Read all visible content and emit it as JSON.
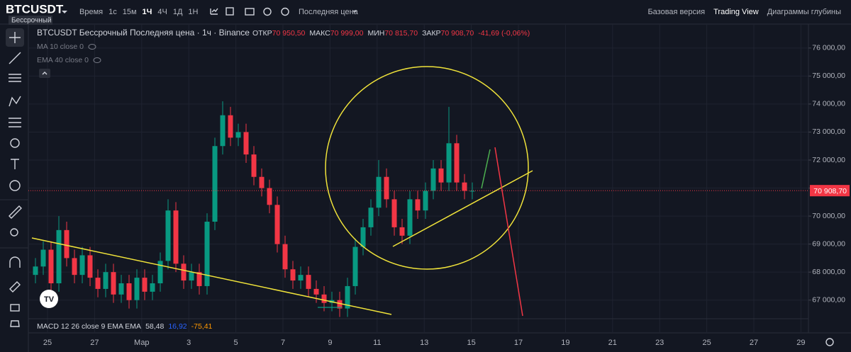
{
  "header": {
    "symbol": "BTCUSDT",
    "contract": "Бессрочный",
    "timeframes": [
      "Время",
      "1с",
      "15м",
      "1Ч",
      "4Ч",
      "1Д",
      "1Н"
    ],
    "price_type": "Последняя цена",
    "views": [
      "Базовая версия",
      "Trading View",
      "Диаграммы глубины"
    ]
  },
  "chart_data": {
    "type": "candlestick",
    "title": "BTCUSDT Бессрочный Последняя цена · 1ч · Binance",
    "stats": [
      {
        "name": "ОТКР",
        "text": "70 950,50"
      },
      {
        "name": "МАКС",
        "text": "70 999,00"
      },
      {
        "name": "МИН",
        "text": "70 815,70"
      },
      {
        "name": "ЗАКР",
        "text": "70 908,70"
      }
    ],
    "change": "-41,69 (-0,06%)",
    "indicators": [
      "MA 10 close 0",
      "EMA 40 close 0"
    ],
    "macd": {
      "name": "MACD 12 26 close 9 EMA EMA",
      "values": [
        "58,48",
        "16,92",
        "-75,41"
      ]
    },
    "open": [
      67900,
      68200,
      68800,
      67600,
      69500,
      68500,
      67900,
      68600,
      67800,
      67400,
      68000,
      67200,
      67600,
      67000,
      67800,
      67300,
      67600,
      68400,
      70200,
      68300,
      67700,
      68000,
      67500,
      69800,
      72500,
      73600,
      72800,
      73000,
      72200,
      71400,
      71000,
      70400,
      69000,
      68100,
      67700,
      67900,
      67400,
      67200,
      66900,
      67000,
      66700,
      67500,
      68900,
      69600,
      70300,
      71400,
      70600,
      69600,
      69300,
      70600,
      70200,
      70900,
      71700,
      71200,
      72600,
      71200,
      70900
    ],
    "high": [
      68500,
      69100,
      69100,
      70000,
      69800,
      68800,
      68900,
      68900,
      68100,
      68300,
      68300,
      67900,
      67900,
      68100,
      68100,
      67900,
      68700,
      70600,
      70500,
      68600,
      68300,
      68300,
      70100,
      72800,
      74100,
      73900,
      73300,
      73300,
      72500,
      71700,
      71300,
      70700,
      69300,
      68400,
      68200,
      68200,
      67700,
      67500,
      67300,
      67300,
      67800,
      69200,
      69900,
      70600,
      72000,
      71700,
      70900,
      69900,
      70900,
      70900,
      71200,
      72000,
      72000,
      73900,
      72900,
      71500,
      71200
    ],
    "low": [
      67600,
      67900,
      67300,
      67300,
      68200,
      67600,
      67600,
      67500,
      67100,
      67100,
      66900,
      66900,
      66700,
      66700,
      67000,
      67000,
      67300,
      68100,
      68000,
      67400,
      67400,
      67200,
      67200,
      69500,
      72200,
      72500,
      72500,
      71900,
      71100,
      70700,
      70100,
      68700,
      67800,
      67400,
      67400,
      67100,
      66900,
      66600,
      66600,
      66400,
      66400,
      67200,
      68600,
      69300,
      70000,
      70300,
      69300,
      69000,
      69000,
      69900,
      69900,
      70600,
      70900,
      70900,
      70900,
      70600,
      70600
    ],
    "close": [
      68200,
      68800,
      67600,
      69500,
      68500,
      67900,
      68600,
      67800,
      67400,
      68000,
      67200,
      67600,
      67000,
      67800,
      67300,
      67600,
      68400,
      70200,
      68300,
      67700,
      68000,
      67500,
      69800,
      72500,
      73600,
      72800,
      73000,
      72200,
      71400,
      71000,
      70400,
      69000,
      68100,
      67700,
      67900,
      67400,
      67200,
      66900,
      67000,
      66700,
      67500,
      68900,
      69600,
      70300,
      71400,
      70600,
      69600,
      69300,
      70600,
      70200,
      70900,
      71700,
      71200,
      72600,
      71200,
      70900,
      70900
    ],
    "up_color": "#089981",
    "down_color": "#f23645",
    "ylim": [
      65830,
      76830
    ],
    "yticks": [
      {
        "value": 67000,
        "label": "67 000,00"
      },
      {
        "value": 68000,
        "label": "68 000,00"
      },
      {
        "value": 69000,
        "label": "69 000,00"
      },
      {
        "value": 70000,
        "label": "70 000,00"
      },
      {
        "value": 71000,
        "label": "71 000,00"
      },
      {
        "value": 72000,
        "label": "72 000,00"
      },
      {
        "value": 73000,
        "label": "73 000,00"
      },
      {
        "value": 74000,
        "label": "74 000,00"
      },
      {
        "value": 75000,
        "label": "75 000,00"
      },
      {
        "value": 76000,
        "label": "76 000,00"
      }
    ],
    "last_price": {
      "value": 70908.7,
      "label": "70 908,70"
    },
    "x_labels": [
      "25",
      "27",
      "Мар",
      "3",
      "5",
      "7",
      "9",
      "11",
      "13",
      "15",
      "17",
      "19",
      "21",
      "23",
      "25",
      "27",
      "29"
    ],
    "grid": true
  }
}
